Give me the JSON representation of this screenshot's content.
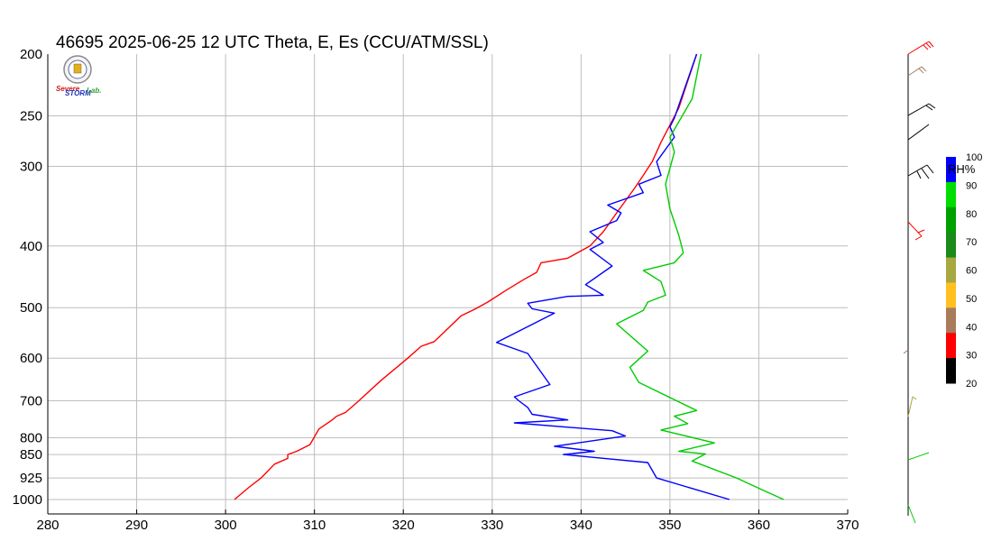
{
  "chart_data": {
    "type": "line",
    "title": "46695  2025-06-25 12 UTC  Theta, E, Es (CCU/ATM/SSL)",
    "xlabel": "",
    "ylabel": "",
    "xlim": [
      280,
      370
    ],
    "x_ticks": [
      280,
      290,
      300,
      310,
      320,
      330,
      340,
      350,
      360,
      370
    ],
    "ylim_hpa": [
      1000,
      200
    ],
    "y_scale": "log-pressure (inverted)",
    "y_ticks": [
      200,
      250,
      300,
      400,
      500,
      600,
      700,
      800,
      850,
      925,
      1000
    ],
    "grid": true,
    "series": [
      {
        "color": "#ff0000",
        "points": [
          [
            301.0,
            1000
          ],
          [
            302.5,
            960
          ],
          [
            304.0,
            925
          ],
          [
            305.5,
            880
          ],
          [
            307.0,
            862
          ],
          [
            307.0,
            855
          ],
          [
            307.0,
            850
          ],
          [
            308.0,
            840
          ],
          [
            309.5,
            820
          ],
          [
            310.5,
            775
          ],
          [
            312.0,
            750
          ],
          [
            312.5,
            740
          ],
          [
            313.5,
            730
          ],
          [
            315.0,
            700
          ],
          [
            317.5,
            650
          ],
          [
            320.5,
            600
          ],
          [
            322.0,
            575
          ],
          [
            323.5,
            565
          ],
          [
            326.5,
            515
          ],
          [
            328.0,
            503
          ],
          [
            329.5,
            490
          ],
          [
            331.5,
            470
          ],
          [
            333.5,
            452
          ],
          [
            335.0,
            440
          ],
          [
            335.5,
            425
          ],
          [
            338.5,
            418
          ],
          [
            341.0,
            400
          ],
          [
            342.5,
            380
          ],
          [
            344.0,
            355
          ],
          [
            346.0,
            325
          ],
          [
            347.0,
            310
          ],
          [
            348.0,
            295
          ],
          [
            349.0,
            275
          ],
          [
            351.0,
            243
          ],
          [
            353.0,
            200
          ]
        ]
      },
      {
        "color": "#0000ff",
        "points": [
          [
            356.7,
            1000
          ],
          [
            348.5,
            925
          ],
          [
            347.5,
            875
          ],
          [
            338.0,
            850
          ],
          [
            341.5,
            840
          ],
          [
            337.0,
            825
          ],
          [
            345.0,
            795
          ],
          [
            343.5,
            780
          ],
          [
            332.5,
            758
          ],
          [
            338.5,
            750
          ],
          [
            334.5,
            735
          ],
          [
            334.0,
            717
          ],
          [
            333.0,
            700
          ],
          [
            332.5,
            690
          ],
          [
            336.5,
            660
          ],
          [
            334.0,
            590
          ],
          [
            330.5,
            567
          ],
          [
            337.0,
            510
          ],
          [
            334.5,
            502
          ],
          [
            334.0,
            492
          ],
          [
            338.5,
            480
          ],
          [
            342.5,
            478
          ],
          [
            340.5,
            460
          ],
          [
            343.5,
            430
          ],
          [
            341.0,
            405
          ],
          [
            342.5,
            395
          ],
          [
            341.0,
            380
          ],
          [
            344.0,
            365
          ],
          [
            344.5,
            355
          ],
          [
            343.0,
            345
          ],
          [
            347.0,
            330
          ],
          [
            346.5,
            320
          ],
          [
            349.0,
            310
          ],
          [
            348.5,
            295
          ],
          [
            350.5,
            270
          ],
          [
            350.0,
            260
          ],
          [
            350.5,
            252
          ],
          [
            353.0,
            200
          ]
        ]
      },
      {
        "color": "#00cc00",
        "points": [
          [
            362.8,
            1000
          ],
          [
            360.0,
            960
          ],
          [
            357.5,
            925
          ],
          [
            352.5,
            870
          ],
          [
            354.0,
            848
          ],
          [
            351.0,
            840
          ],
          [
            355.0,
            815
          ],
          [
            349.0,
            778
          ],
          [
            352.0,
            760
          ],
          [
            350.5,
            740
          ],
          [
            353.0,
            725
          ],
          [
            346.5,
            655
          ],
          [
            345.5,
            620
          ],
          [
            347.5,
            585
          ],
          [
            344.0,
            530
          ],
          [
            347.0,
            505
          ],
          [
            347.5,
            490
          ],
          [
            349.5,
            478
          ],
          [
            349.0,
            455
          ],
          [
            347.0,
            437
          ],
          [
            350.5,
            425
          ],
          [
            351.5,
            410
          ],
          [
            351.0,
            385
          ],
          [
            350.0,
            350
          ],
          [
            349.5,
            320
          ],
          [
            350.5,
            285
          ],
          [
            350.0,
            270
          ],
          [
            352.5,
            235
          ],
          [
            353.5,
            200
          ]
        ]
      }
    ],
    "colorbar": {
      "label": "RH%",
      "tick_labels": [
        "20",
        "30",
        "40",
        "50",
        "60",
        "70",
        "80",
        "90",
        "100"
      ],
      "colors": [
        "#000000",
        "#ff0000",
        "#a97b5b",
        "#ffc020",
        "#a8a840",
        "#1a8a1a",
        "#00a000",
        "#00dd00",
        "#0000ff"
      ]
    }
  },
  "logo": {
    "text_top": "Severe",
    "text_mid": "STORM",
    "text_right": "Lab."
  }
}
